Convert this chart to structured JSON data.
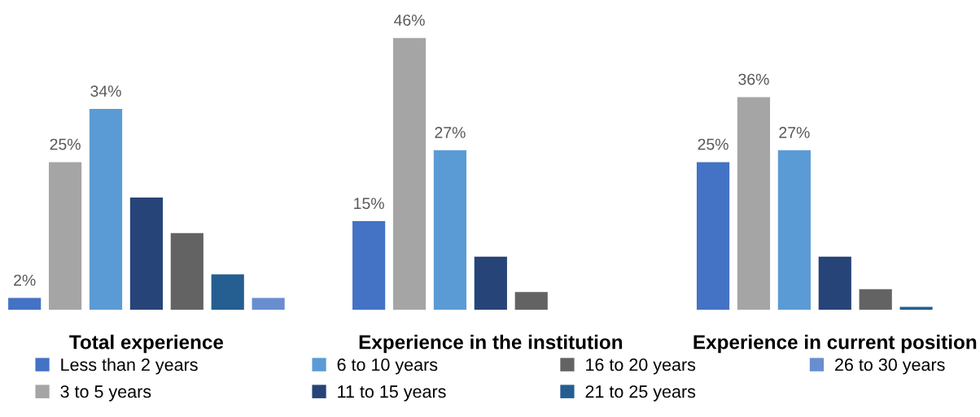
{
  "chart_data": {
    "type": "bar",
    "categories": [
      "Total experience",
      "Experience in the institution",
      "Experience in current position"
    ],
    "series": [
      {
        "name": "Less than 2 years",
        "color": "#4472c4",
        "values": [
          2,
          15,
          25
        ],
        "value_labels": [
          "2%",
          "15%",
          "25%"
        ]
      },
      {
        "name": "3 to 5 years",
        "color": "#a5a5a5",
        "values": [
          25,
          46,
          36
        ],
        "value_labels": [
          "25%",
          "46%",
          "36%"
        ]
      },
      {
        "name": "6 to 10 years",
        "color": "#5b9bd5",
        "values": [
          34,
          27,
          27
        ],
        "value_labels": [
          "34%",
          "27%",
          "27%"
        ]
      },
      {
        "name": "11 to 15 years",
        "color": "#264478",
        "values": [
          19,
          9,
          9
        ],
        "value_labels": [
          null,
          null,
          null
        ]
      },
      {
        "name": "16 to 20 years",
        "color": "#636363",
        "values": [
          13,
          3,
          3.5
        ],
        "value_labels": [
          null,
          null,
          null
        ]
      },
      {
        "name": "21 to 25 years",
        "color": "#255e91",
        "values": [
          6,
          null,
          0.5
        ],
        "value_labels": [
          null,
          null,
          null
        ]
      },
      {
        "name": "26 to 30 years",
        "color": "#698ed0",
        "values": [
          2,
          null,
          null
        ],
        "value_labels": [
          null,
          null,
          null
        ]
      }
    ],
    "legend": "bottom",
    "grid": false,
    "tick_labels": "x"
  }
}
